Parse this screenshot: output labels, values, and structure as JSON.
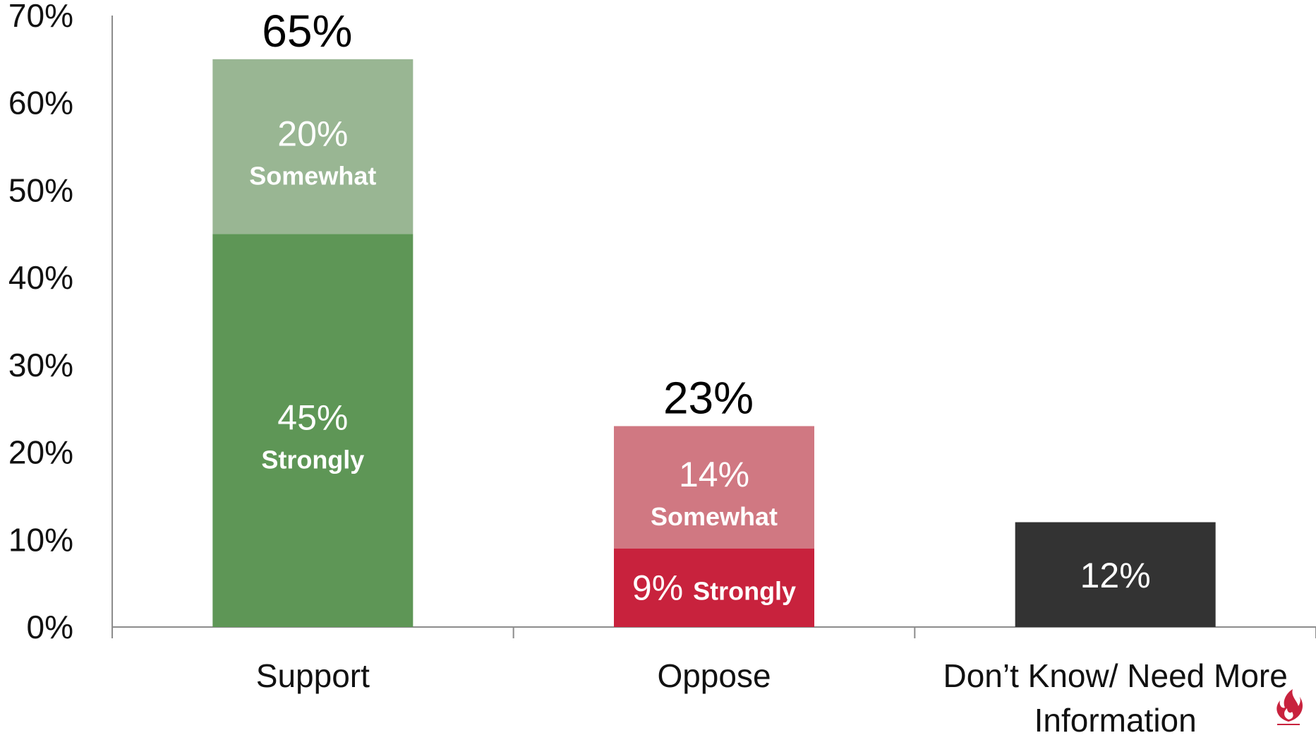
{
  "chart_data": {
    "type": "bar",
    "stacked": true,
    "title": "",
    "xlabel": "",
    "ylabel": "",
    "ylim": [
      0,
      70
    ],
    "y_ticks": [
      "0%",
      "10%",
      "20%",
      "30%",
      "40%",
      "50%",
      "60%",
      "70%"
    ],
    "grid": false,
    "legend": "none",
    "categories": [
      {
        "label_lines": [
          "Support"
        ],
        "total": 65,
        "total_label": "65%"
      },
      {
        "label_lines": [
          "Oppose"
        ],
        "total": 23,
        "total_label": "23%"
      },
      {
        "label_lines": [
          "Don’t Know/ Need More",
          "Information"
        ],
        "total": 12,
        "total_label": ""
      }
    ],
    "segments": [
      {
        "category": 0,
        "value": 45,
        "pct_label": "45%",
        "name_label": "Strongly",
        "layout": "stacked",
        "color": "#5e9656"
      },
      {
        "category": 0,
        "value": 20,
        "pct_label": "20%",
        "name_label": "Somewhat",
        "layout": "stacked",
        "color": "#99b693"
      },
      {
        "category": 1,
        "value": 9,
        "pct_label": "9%",
        "name_label": "Strongly",
        "layout": "inline",
        "color": "#c8223d"
      },
      {
        "category": 1,
        "value": 14,
        "pct_label": "14%",
        "name_label": "Somewhat",
        "layout": "stacked",
        "color": "#d07882"
      },
      {
        "category": 2,
        "value": 12,
        "pct_label": "12%",
        "name_label": "",
        "layout": "stacked",
        "color": "#333333"
      }
    ]
  },
  "logo": {
    "icon": "flame-icon",
    "color": "#c8223d"
  }
}
